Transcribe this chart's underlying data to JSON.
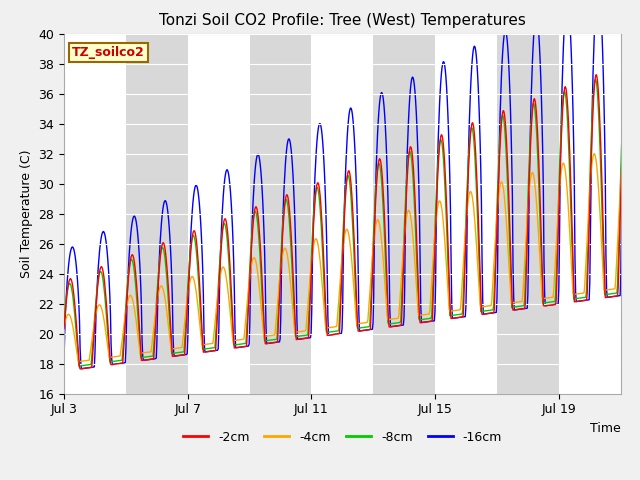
{
  "title": "Tonzi Soil CO2 Profile: Tree (West) Temperatures",
  "ylabel": "Soil Temperature (C)",
  "xlabel": "Time",
  "ylim": [
    16,
    40
  ],
  "yticks": [
    16,
    18,
    20,
    22,
    24,
    26,
    28,
    30,
    32,
    34,
    36,
    38,
    40
  ],
  "xtick_labels": [
    "Jul 3",
    "Jul 7",
    "Jul 11",
    "Jul 15",
    "Jul 19"
  ],
  "xtick_positions": [
    0,
    4,
    8,
    12,
    16
  ],
  "line_colors": [
    "#ff0000",
    "#ffa500",
    "#00cc00",
    "#0000ff"
  ],
  "line_labels": [
    "-2cm",
    "-4cm",
    "-8cm",
    "-16cm"
  ],
  "label_box_text": "TZ_soilco2",
  "label_box_bg": "#ffffcc",
  "label_box_text_color": "#cc0000",
  "label_box_edge_color": "#996600",
  "plot_bg_gray": "#d8d8d8",
  "plot_bg_white": "#f0f0f0",
  "fig_bg": "#f0f0f0",
  "n_days": 19,
  "samples_per_day": 48
}
